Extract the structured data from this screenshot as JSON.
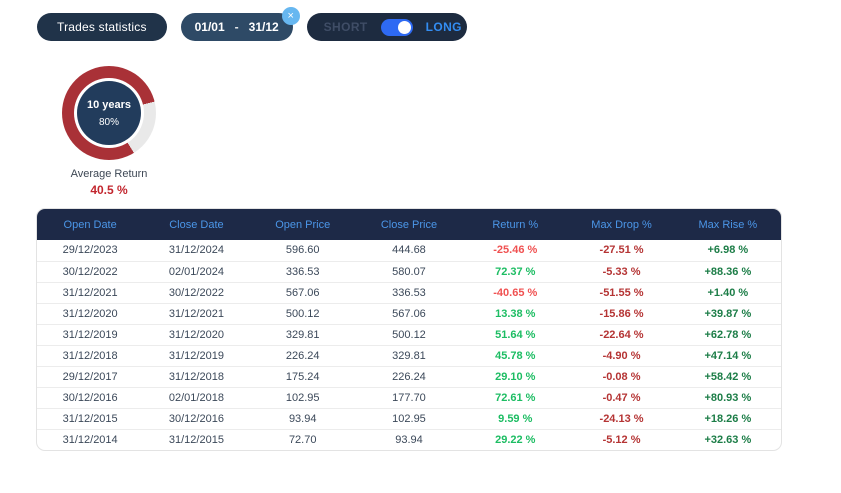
{
  "toolbar": {
    "stats_button_label": "Trades statistics",
    "date_filter": {
      "start": "01/01",
      "separator": "-",
      "end": "31/12",
      "close_icon": "×"
    },
    "direction_toggle": {
      "short_label": "SHORT",
      "long_label": "LONG",
      "selected": "LONG"
    }
  },
  "gauge": {
    "period_label": "10 years",
    "percent_label": "80%",
    "percent_value": 80,
    "caption": "Average Return",
    "value": "40.5 %"
  },
  "table": {
    "columns": [
      "Open Date",
      "Close Date",
      "Open Price",
      "Close Price",
      "Return %",
      "Max Drop %",
      "Max Rise %"
    ],
    "rows": [
      [
        "29/12/2023",
        "31/12/2024",
        "596.60",
        "444.68",
        "-25.46 %",
        "-27.51 %",
        "+6.98 %"
      ],
      [
        "30/12/2022",
        "02/01/2024",
        "336.53",
        "580.07",
        "72.37 %",
        "-5.33 %",
        "+88.36 %"
      ],
      [
        "31/12/2021",
        "30/12/2022",
        "567.06",
        "336.53",
        "-40.65 %",
        "-51.55 %",
        "+1.40 %"
      ],
      [
        "31/12/2020",
        "31/12/2021",
        "500.12",
        "567.06",
        "13.38 %",
        "-15.86 %",
        "+39.87 %"
      ],
      [
        "31/12/2019",
        "31/12/2020",
        "329.81",
        "500.12",
        "51.64 %",
        "-22.64 %",
        "+62.78 %"
      ],
      [
        "31/12/2018",
        "31/12/2019",
        "226.24",
        "329.81",
        "45.78 %",
        "-4.90 %",
        "+47.14 %"
      ],
      [
        "29/12/2017",
        "31/12/2018",
        "175.24",
        "226.24",
        "29.10 %",
        "-0.08 %",
        "+58.42 %"
      ],
      [
        "30/12/2016",
        "02/01/2018",
        "102.95",
        "177.70",
        "72.61 %",
        "-0.47 %",
        "+80.93 %"
      ],
      [
        "31/12/2015",
        "30/12/2016",
        "93.94",
        "102.95",
        "9.59 %",
        "-24.13 %",
        "+18.26 %"
      ],
      [
        "31/12/2014",
        "31/12/2015",
        "72.70",
        "93.94",
        "29.22 %",
        "-5.12 %",
        "+32.63 %"
      ]
    ]
  },
  "colors": {
    "pill_dark": "#203349",
    "pill_date": "#2e4a66",
    "pill_toggle": "#1d2b40",
    "toggle_track": "#2e6af3",
    "long_text": "#338df2",
    "short_text": "#3f4d66",
    "close_badge": "#67b7f0",
    "header_bg": "#1d2947",
    "header_text": "#4b96e8",
    "return_positive": "#1dbd63",
    "return_negative": "#f05151",
    "max_drop": "#b53434",
    "max_rise": "#1c7d47",
    "gauge_ring": "#a93137",
    "gauge_track": "#e9e9e9",
    "gauge_center": "#223c5c",
    "value_red": "#c2262e"
  }
}
